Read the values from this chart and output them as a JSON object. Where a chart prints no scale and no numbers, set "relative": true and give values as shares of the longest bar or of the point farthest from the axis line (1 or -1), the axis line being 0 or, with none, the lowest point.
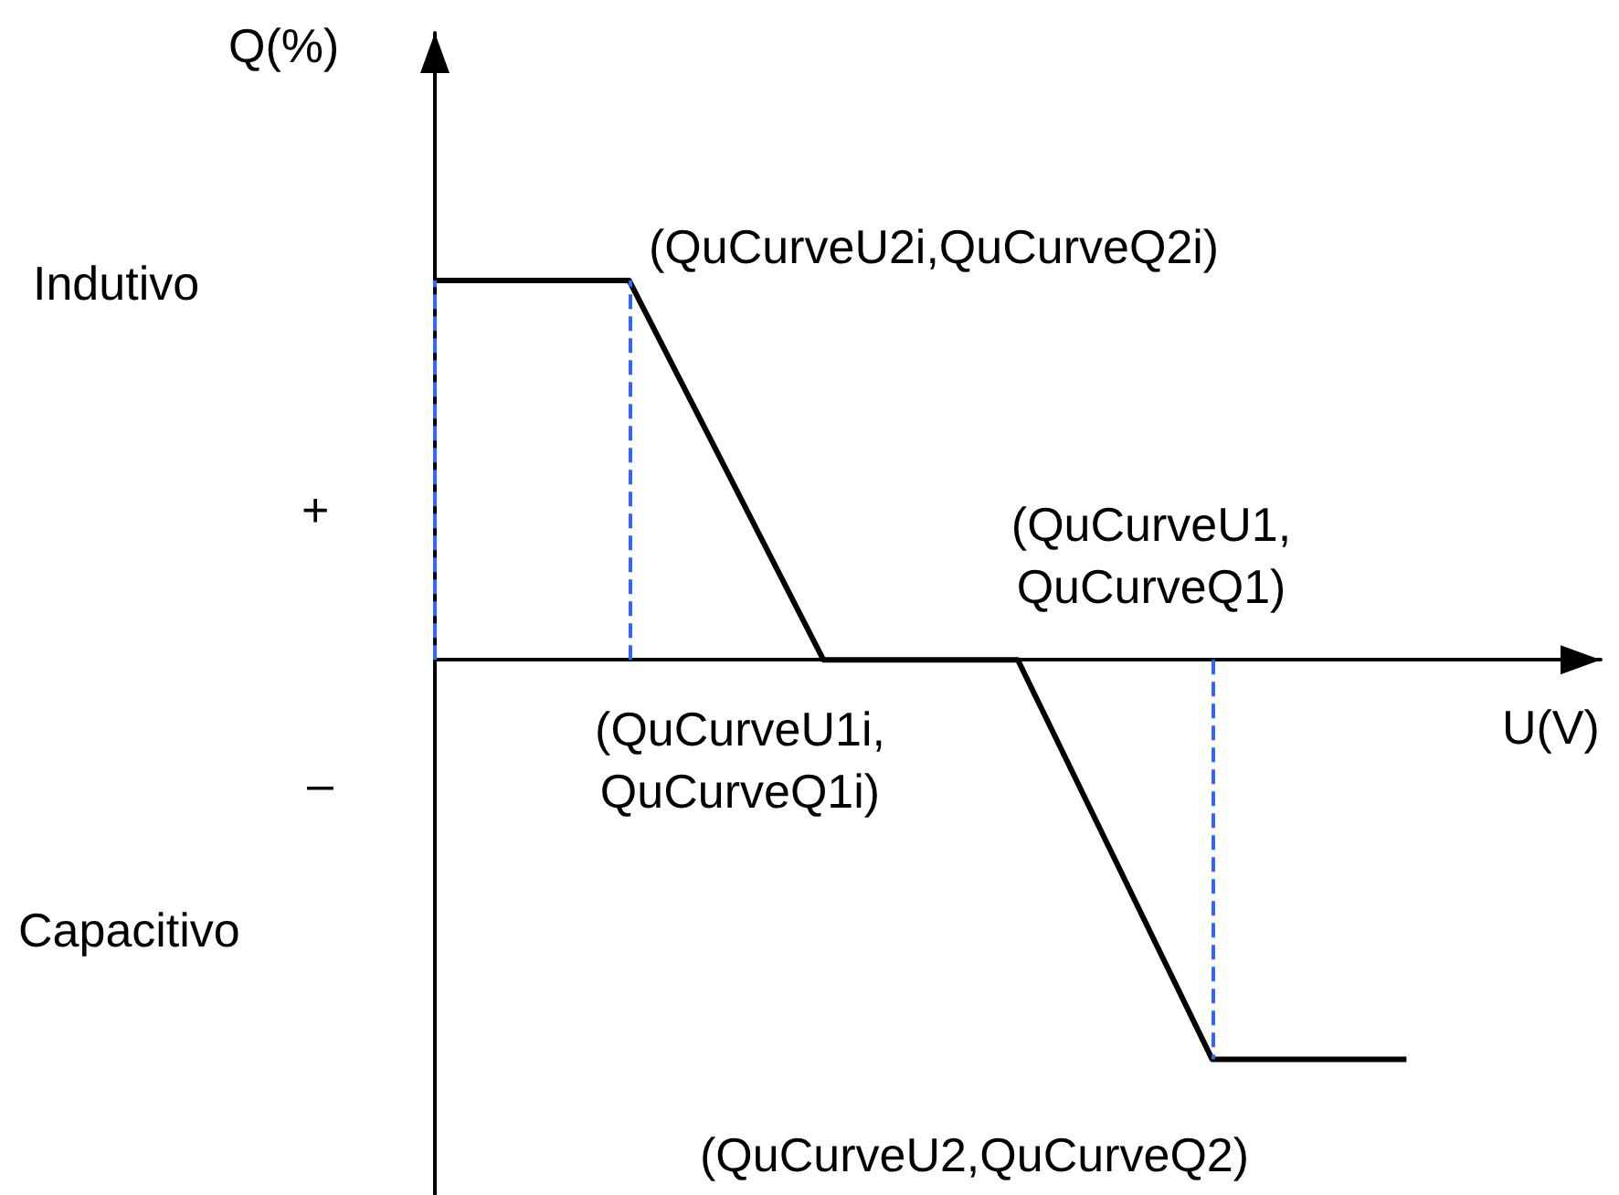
{
  "chart_data": {
    "type": "line",
    "relative": true,
    "xlabel": "U(V)",
    "ylabel": "Q(%)",
    "categories": [
      null,
      null,
      null,
      null,
      null,
      null,
      null
    ],
    "values": [
      0.95,
      0.95,
      0,
      0,
      -1,
      -1,
      null
    ],
    "color": "#000000",
    "annotations": [
      "Indutivo",
      "+",
      "–",
      "Capacitivo",
      "(QuCurveU2i,QuCurveQ2i)",
      "(QuCurveU1,\nQuCurveQ1)",
      "(QuCurveU1i,\nQuCurveQ1i)",
      "(QuCurveU2,QuCurveQ2)"
    ]
  }
}
